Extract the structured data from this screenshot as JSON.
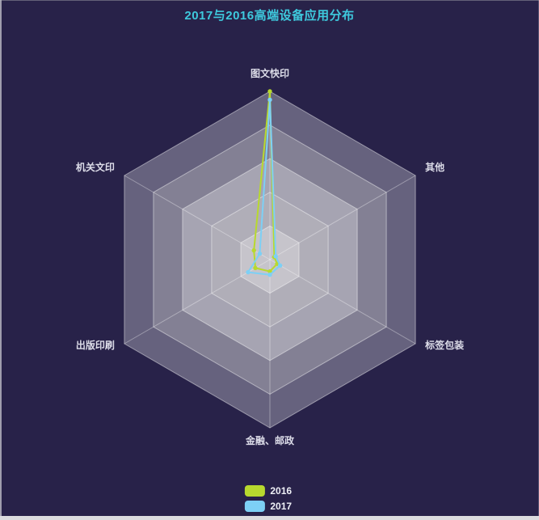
{
  "page": {
    "background": "#282249"
  },
  "title": {
    "text": "2017与2016高端设备应用分布",
    "color": "#3ec9dd"
  },
  "chart_data": {
    "type": "radar",
    "categories": [
      "图文快印",
      "其他",
      "标签包装",
      "金融、邮政",
      "出版印刷",
      "机关文印"
    ],
    "max": 100,
    "levels": 5,
    "series": [
      {
        "name": "2016",
        "color": "#b8d92e",
        "values": [
          100,
          3,
          5,
          7,
          10,
          11
        ]
      },
      {
        "name": "2017",
        "color": "#7dd0f5",
        "values": [
          95,
          4,
          7,
          9,
          15,
          7
        ]
      }
    ],
    "grid": {
      "band_light": "rgba(250,250,250,0.30)",
      "band_dark": "rgba(200,200,200,0.30)",
      "ring_line": "rgba(255,255,255,0.45)",
      "axis_line": "rgba(255,255,255,0.35)",
      "label_color": "#dddde9"
    },
    "legend_position": "bottom-center"
  },
  "legend": {
    "items": [
      {
        "label": "2016",
        "color": "#b8d92e"
      },
      {
        "label": "2017",
        "color": "#7dd0f5"
      }
    ]
  }
}
